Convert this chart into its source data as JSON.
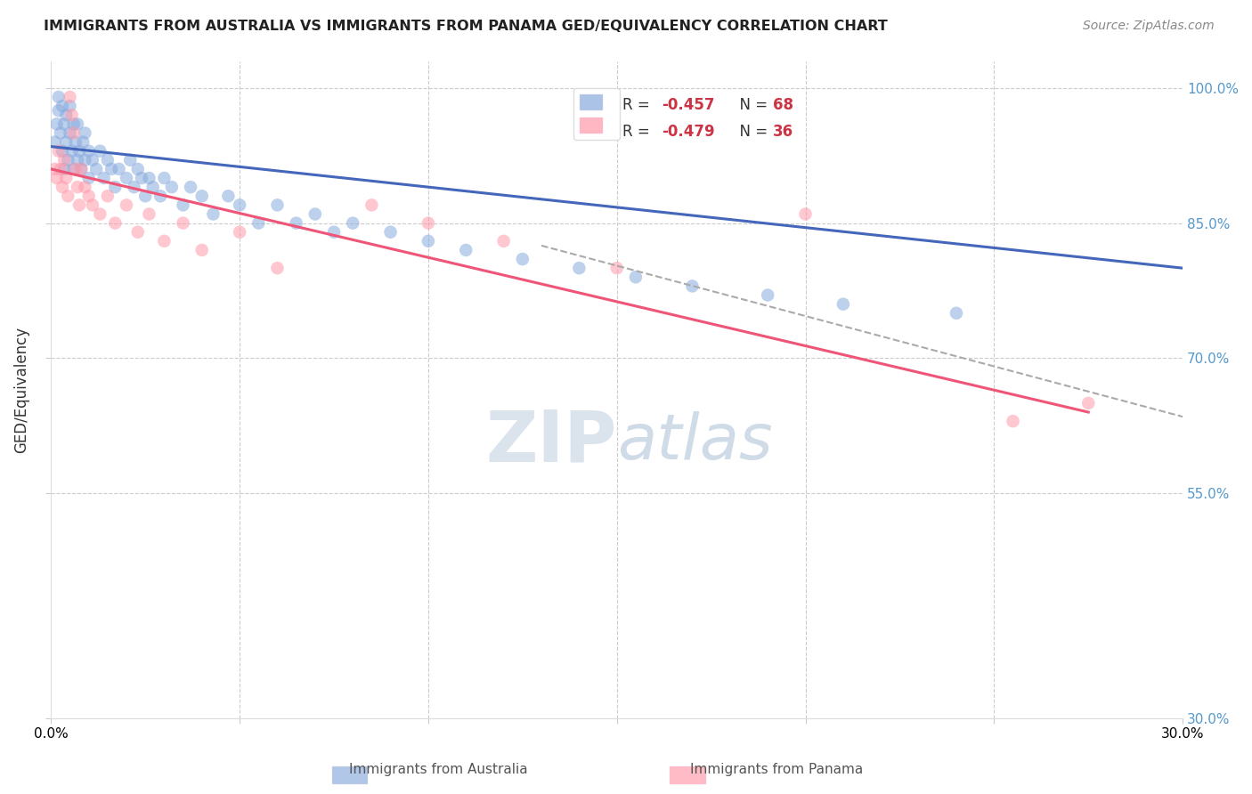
{
  "title": "IMMIGRANTS FROM AUSTRALIA VS IMMIGRANTS FROM PANAMA GED/EQUIVALENCY CORRELATION CHART",
  "source": "Source: ZipAtlas.com",
  "ylabel": "GED/Equivalency",
  "yticks": [
    30.0,
    55.0,
    70.0,
    85.0,
    100.0
  ],
  "xticks": [
    0.0,
    5.0,
    10.0,
    15.0,
    20.0,
    25.0,
    30.0
  ],
  "xlim": [
    0.0,
    30.0
  ],
  "ylim": [
    30.0,
    103.0
  ],
  "legend_R1": "R = -0.457",
  "legend_N1": "N = 68",
  "legend_R2": "R = -0.479",
  "legend_N2": "N = 36",
  "color_australia": "#88AADD",
  "color_panama": "#FF99AA",
  "color_regression_australia": "#4466BB",
  "color_regression_panama": "#EE5577",
  "watermark": "ZIPAtlas",
  "australia_x": [
    0.1,
    0.15,
    0.2,
    0.2,
    0.25,
    0.3,
    0.3,
    0.35,
    0.35,
    0.4,
    0.4,
    0.45,
    0.5,
    0.5,
    0.55,
    0.6,
    0.6,
    0.65,
    0.7,
    0.7,
    0.75,
    0.8,
    0.85,
    0.9,
    0.9,
    1.0,
    1.0,
    1.1,
    1.2,
    1.3,
    1.4,
    1.5,
    1.6,
    1.7,
    1.8,
    2.0,
    2.1,
    2.2,
    2.3,
    2.4,
    2.5,
    2.6,
    2.7,
    2.9,
    3.0,
    3.2,
    3.5,
    3.7,
    4.0,
    4.3,
    4.7,
    5.0,
    5.5,
    6.0,
    6.5,
    7.0,
    7.5,
    8.0,
    9.0,
    10.0,
    11.0,
    12.5,
    14.0,
    15.5,
    17.0,
    19.0,
    21.0,
    24.0
  ],
  "australia_y": [
    94.0,
    96.0,
    97.5,
    99.0,
    95.0,
    93.0,
    98.0,
    96.0,
    91.0,
    94.0,
    97.0,
    92.0,
    95.0,
    98.0,
    93.0,
    96.0,
    91.0,
    94.0,
    92.0,
    96.0,
    93.0,
    91.0,
    94.0,
    92.0,
    95.0,
    93.0,
    90.0,
    92.0,
    91.0,
    93.0,
    90.0,
    92.0,
    91.0,
    89.0,
    91.0,
    90.0,
    92.0,
    89.0,
    91.0,
    90.0,
    88.0,
    90.0,
    89.0,
    88.0,
    90.0,
    89.0,
    87.0,
    89.0,
    88.0,
    86.0,
    88.0,
    87.0,
    85.0,
    87.0,
    85.0,
    86.0,
    84.0,
    85.0,
    84.0,
    83.0,
    82.0,
    81.0,
    80.0,
    79.0,
    78.0,
    77.0,
    76.0,
    75.0
  ],
  "panama_x": [
    0.1,
    0.15,
    0.2,
    0.25,
    0.3,
    0.35,
    0.4,
    0.45,
    0.5,
    0.55,
    0.6,
    0.65,
    0.7,
    0.75,
    0.8,
    0.9,
    1.0,
    1.1,
    1.3,
    1.5,
    1.7,
    2.0,
    2.3,
    2.6,
    3.0,
    3.5,
    4.0,
    5.0,
    6.0,
    8.5,
    10.0,
    12.0,
    15.0,
    20.0,
    25.5,
    27.5
  ],
  "panama_y": [
    91.0,
    90.0,
    93.0,
    91.0,
    89.0,
    92.0,
    90.0,
    88.0,
    99.0,
    97.0,
    95.0,
    91.0,
    89.0,
    87.0,
    91.0,
    89.0,
    88.0,
    87.0,
    86.0,
    88.0,
    85.0,
    87.0,
    84.0,
    86.0,
    83.0,
    85.0,
    82.0,
    84.0,
    80.0,
    87.0,
    85.0,
    83.0,
    80.0,
    86.0,
    63.0,
    65.0
  ],
  "aus_line_x0": 0.0,
  "aus_line_x1": 30.0,
  "aus_line_y0": 93.5,
  "aus_line_y1": 80.0,
  "pan_line_x0": 0.0,
  "pan_line_x1": 27.5,
  "pan_line_y0": 91.0,
  "pan_line_y1": 64.0,
  "dash_line_x0": 13.0,
  "dash_line_x1": 30.0,
  "dash_line_y0": 82.5,
  "dash_line_y1": 63.5
}
